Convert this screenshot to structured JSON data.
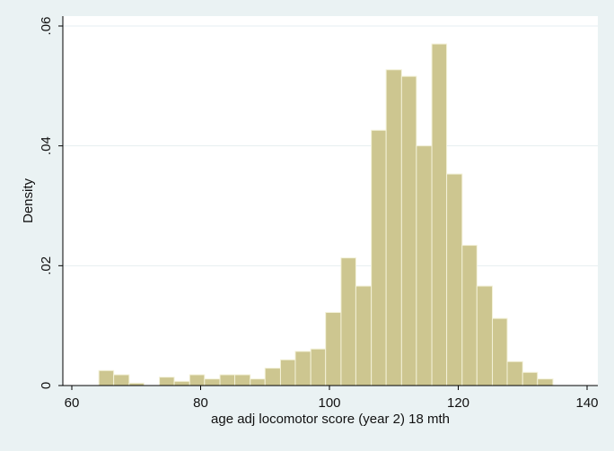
{
  "chart_data": {
    "type": "bar",
    "subtype": "histogram",
    "title": "",
    "xlabel": "age adj locomotor score (year 2) 18 mth",
    "ylabel": "Density",
    "xlim": [
      60,
      140
    ],
    "ylim": [
      0,
      0.06
    ],
    "x_ticks": [
      60,
      80,
      100,
      120,
      140
    ],
    "x_tick_labels": [
      "60",
      "80",
      "100",
      "120",
      "140"
    ],
    "y_ticks": [
      0,
      0.02,
      0.04,
      0.06
    ],
    "y_tick_labels": [
      "0",
      ".02",
      ".04",
      ".06"
    ],
    "grid": "horizontal",
    "colors": {
      "background": "#eaf2f3",
      "plot_area": "#ffffff",
      "bar_fill": "#cdc690",
      "bar_stroke": "#f3f1d8",
      "grid": "#e6eef0",
      "axis": "#000000"
    },
    "bin_width": 2.35,
    "bins": [
      {
        "x0": 64.2,
        "x1": 66.5,
        "density": 0.0025
      },
      {
        "x0": 66.5,
        "x1": 68.9,
        "density": 0.0018
      },
      {
        "x0": 68.9,
        "x1": 71.2,
        "density": 0.0004
      },
      {
        "x0": 73.6,
        "x1": 75.9,
        "density": 0.0014
      },
      {
        "x0": 75.9,
        "x1": 78.3,
        "density": 0.0007
      },
      {
        "x0": 78.3,
        "x1": 80.6,
        "density": 0.0018
      },
      {
        "x0": 80.6,
        "x1": 83.0,
        "density": 0.0011
      },
      {
        "x0": 83.0,
        "x1": 85.3,
        "density": 0.0018
      },
      {
        "x0": 85.3,
        "x1": 87.7,
        "density": 0.0018
      },
      {
        "x0": 87.7,
        "x1": 90.0,
        "density": 0.0011
      },
      {
        "x0": 90.0,
        "x1": 92.4,
        "density": 0.0029
      },
      {
        "x0": 92.4,
        "x1": 94.7,
        "density": 0.0043
      },
      {
        "x0": 94.7,
        "x1": 97.1,
        "density": 0.0057
      },
      {
        "x0": 97.1,
        "x1": 99.4,
        "density": 0.0061
      },
      {
        "x0": 99.4,
        "x1": 101.8,
        "density": 0.0122
      },
      {
        "x0": 101.8,
        "x1": 104.1,
        "density": 0.0213
      },
      {
        "x0": 104.1,
        "x1": 106.5,
        "density": 0.0166
      },
      {
        "x0": 106.5,
        "x1": 108.8,
        "density": 0.0426
      },
      {
        "x0": 108.8,
        "x1": 111.2,
        "density": 0.0527
      },
      {
        "x0": 111.2,
        "x1": 113.5,
        "density": 0.0516
      },
      {
        "x0": 113.5,
        "x1": 115.9,
        "density": 0.04
      },
      {
        "x0": 115.9,
        "x1": 118.2,
        "density": 0.057
      },
      {
        "x0": 118.2,
        "x1": 120.6,
        "density": 0.0353
      },
      {
        "x0": 120.6,
        "x1": 122.9,
        "density": 0.0234
      },
      {
        "x0": 122.9,
        "x1": 125.3,
        "density": 0.0166
      },
      {
        "x0": 125.3,
        "x1": 127.6,
        "density": 0.0112
      },
      {
        "x0": 127.6,
        "x1": 130.0,
        "density": 0.004
      },
      {
        "x0": 130.0,
        "x1": 132.3,
        "density": 0.0022
      },
      {
        "x0": 132.3,
        "x1": 134.7,
        "density": 0.0011
      }
    ]
  }
}
